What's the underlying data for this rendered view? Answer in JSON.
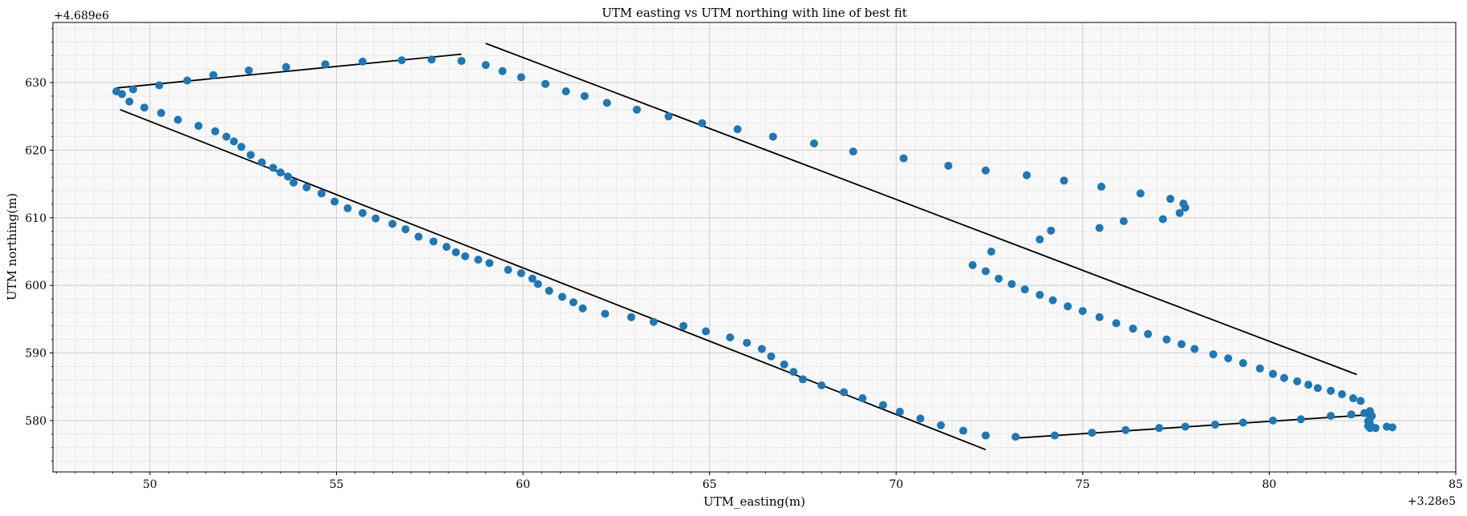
{
  "chart_data": {
    "type": "scatter",
    "title": "UTM easting vs UTM northing with line of best fit",
    "xlabel": "UTM_easting(m)",
    "ylabel": "UTM northing(m)",
    "x_offset_label": "+3.28e5",
    "y_offset_label": "+4.689e6",
    "xlim": [
      47.4,
      85.0
    ],
    "ylim": [
      572.4,
      638.9
    ],
    "x_ticks": [
      50,
      55,
      60,
      65,
      70,
      75,
      80,
      85
    ],
    "y_ticks": [
      580,
      590,
      600,
      610,
      620,
      630
    ],
    "x_minor_step": 0.5,
    "y_minor_step": 2,
    "grid": true,
    "colors": {
      "points": "#1f77b4",
      "fit_lines": "#000000",
      "background": "#f8f8f8",
      "major_grid": "#cfcfcf",
      "minor_grid": "#e6e6e6"
    },
    "series": [
      {
        "points": [
          [
            49.1,
            628.7
          ],
          [
            49.25,
            628.3
          ],
          [
            49.45,
            627.2
          ],
          [
            49.85,
            626.3
          ],
          [
            50.3,
            625.5
          ],
          [
            50.75,
            624.5
          ],
          [
            51.3,
            623.6
          ],
          [
            51.75,
            622.8
          ],
          [
            52.05,
            622.0
          ],
          [
            52.25,
            621.3
          ],
          [
            52.45,
            620.5
          ],
          [
            52.7,
            619.3
          ],
          [
            53.0,
            618.2
          ],
          [
            53.3,
            617.4
          ],
          [
            53.5,
            616.7
          ],
          [
            53.7,
            616.1
          ],
          [
            53.85,
            615.2
          ],
          [
            54.2,
            614.5
          ],
          [
            54.6,
            613.6
          ],
          [
            54.95,
            612.4
          ],
          [
            55.3,
            611.4
          ],
          [
            55.7,
            610.7
          ],
          [
            56.05,
            609.9
          ],
          [
            56.5,
            609.1
          ],
          [
            56.85,
            608.3
          ],
          [
            57.2,
            607.2
          ],
          [
            57.6,
            606.5
          ],
          [
            57.95,
            605.7
          ],
          [
            58.2,
            604.9
          ],
          [
            58.45,
            604.3
          ],
          [
            58.8,
            603.8
          ],
          [
            59.1,
            603.3
          ],
          [
            59.6,
            602.3
          ],
          [
            59.95,
            601.8
          ],
          [
            60.25,
            601.0
          ],
          [
            60.4,
            600.2
          ],
          [
            60.7,
            599.2
          ],
          [
            61.05,
            598.3
          ],
          [
            61.35,
            597.5
          ],
          [
            61.6,
            596.6
          ],
          [
            62.2,
            595.8
          ],
          [
            62.9,
            595.3
          ],
          [
            63.5,
            594.6
          ],
          [
            64.3,
            594.0
          ],
          [
            64.9,
            593.2
          ],
          [
            65.55,
            592.3
          ],
          [
            66.0,
            591.5
          ],
          [
            66.4,
            590.6
          ],
          [
            66.65,
            589.5
          ],
          [
            67.0,
            588.3
          ],
          [
            67.25,
            587.2
          ],
          [
            67.5,
            586.1
          ],
          [
            68.0,
            585.2
          ],
          [
            68.6,
            584.2
          ],
          [
            69.1,
            583.3
          ],
          [
            69.65,
            582.3
          ],
          [
            70.1,
            581.3
          ],
          [
            70.65,
            580.3
          ],
          [
            71.2,
            579.3
          ],
          [
            71.8,
            578.5
          ],
          [
            72.4,
            577.8
          ]
        ]
      },
      {
        "points": [
          [
            73.2,
            577.6
          ],
          [
            74.25,
            577.8
          ],
          [
            75.25,
            578.2
          ],
          [
            76.15,
            578.6
          ],
          [
            77.05,
            578.9
          ],
          [
            77.75,
            579.1
          ],
          [
            78.55,
            579.4
          ],
          [
            79.3,
            579.7
          ],
          [
            80.1,
            580.0
          ],
          [
            80.85,
            580.2
          ],
          [
            81.65,
            580.7
          ],
          [
            82.2,
            580.9
          ],
          [
            82.55,
            581.1
          ],
          [
            82.7,
            581.4
          ],
          [
            82.75,
            580.7
          ],
          [
            82.7,
            580.3
          ],
          [
            82.65,
            579.9
          ],
          [
            82.7,
            579.5
          ],
          [
            82.65,
            579.2
          ],
          [
            82.7,
            578.9
          ],
          [
            82.85,
            578.9
          ],
          [
            83.15,
            579.1
          ],
          [
            83.3,
            579.0
          ]
        ]
      },
      {
        "points": [
          [
            82.45,
            582.9
          ],
          [
            82.25,
            583.3
          ],
          [
            81.95,
            583.9
          ],
          [
            81.65,
            584.4
          ],
          [
            81.3,
            584.8
          ],
          [
            81.05,
            585.3
          ],
          [
            80.75,
            585.8
          ],
          [
            80.4,
            586.3
          ],
          [
            80.1,
            586.9
          ],
          [
            79.75,
            587.7
          ],
          [
            79.3,
            588.5
          ],
          [
            78.9,
            589.2
          ],
          [
            78.5,
            589.8
          ],
          [
            78.0,
            590.6
          ],
          [
            77.65,
            591.3
          ],
          [
            77.25,
            592.0
          ],
          [
            76.75,
            592.8
          ],
          [
            76.35,
            593.6
          ],
          [
            75.9,
            594.4
          ],
          [
            75.45,
            595.3
          ],
          [
            75.0,
            596.2
          ],
          [
            74.6,
            596.9
          ],
          [
            74.2,
            597.8
          ],
          [
            73.85,
            598.6
          ],
          [
            73.45,
            599.4
          ],
          [
            73.1,
            600.2
          ],
          [
            72.75,
            601.0
          ],
          [
            72.4,
            602.1
          ],
          [
            72.05,
            603.0
          ],
          [
            72.55,
            605.0
          ],
          [
            73.85,
            606.8
          ],
          [
            74.15,
            608.1
          ],
          [
            75.45,
            608.5
          ],
          [
            76.1,
            609.5
          ],
          [
            77.15,
            609.8
          ],
          [
            77.6,
            610.7
          ],
          [
            77.75,
            611.5
          ],
          [
            77.7,
            612.1
          ],
          [
            77.35,
            612.8
          ],
          [
            76.55,
            613.6
          ],
          [
            75.5,
            614.6
          ],
          [
            74.5,
            615.5
          ],
          [
            73.5,
            616.3
          ],
          [
            72.4,
            617.0
          ],
          [
            71.4,
            617.7
          ],
          [
            70.2,
            618.8
          ],
          [
            68.85,
            619.8
          ],
          [
            67.8,
            621.0
          ],
          [
            66.7,
            622.0
          ],
          [
            65.75,
            623.1
          ],
          [
            64.8,
            624.0
          ],
          [
            63.9,
            625.0
          ],
          [
            63.05,
            626.0
          ],
          [
            62.25,
            627.0
          ],
          [
            61.65,
            628.0
          ],
          [
            61.15,
            628.7
          ],
          [
            60.6,
            629.8
          ],
          [
            59.95,
            630.8
          ],
          [
            59.45,
            631.7
          ],
          [
            59.0,
            632.6
          ]
        ]
      },
      {
        "points": [
          [
            49.55,
            629.0
          ],
          [
            50.25,
            629.6
          ],
          [
            51.0,
            630.3
          ],
          [
            51.7,
            631.1
          ],
          [
            52.65,
            631.8
          ],
          [
            53.65,
            632.3
          ],
          [
            54.7,
            632.7
          ],
          [
            55.7,
            633.1
          ],
          [
            56.75,
            633.3
          ],
          [
            57.55,
            633.4
          ],
          [
            58.35,
            633.2
          ]
        ]
      }
    ],
    "fit_lines": [
      {
        "x": [
          49.2,
          72.4
        ],
        "y": [
          626.0,
          575.7
        ]
      },
      {
        "x": [
          73.2,
          82.8
        ],
        "y": [
          577.4,
          580.9
        ]
      },
      {
        "x": [
          59.0,
          82.35
        ],
        "y": [
          635.8,
          586.8
        ]
      },
      {
        "x": [
          49.1,
          58.35
        ],
        "y": [
          629.2,
          634.2
        ]
      }
    ]
  }
}
